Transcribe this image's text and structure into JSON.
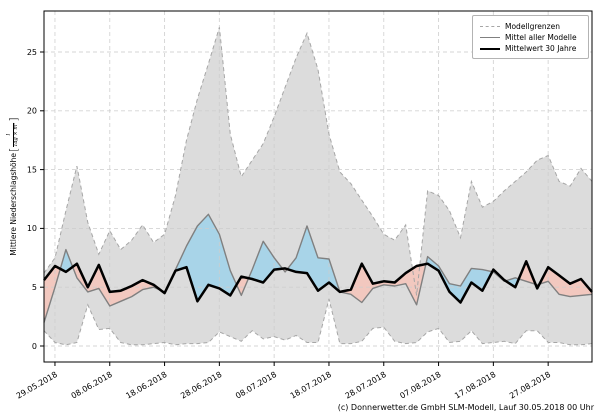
{
  "chart_data": {
    "type": "line",
    "title": "",
    "ylabel": {
      "text": "Mittlere Niederschlagshöhe",
      "open": "[",
      "num": "l",
      "den": "Tag × m²",
      "close": "]"
    },
    "ytick_values": [
      0,
      5,
      10,
      15,
      20,
      25
    ],
    "ytick_labels": [
      "0",
      "5",
      "10",
      "15",
      "20",
      "25"
    ],
    "ylim": [
      -1.4,
      28.5
    ],
    "x_tick_labels": [
      "29.05.2018",
      "08.06.2018",
      "18.06.2018",
      "28.06.2018",
      "08.07.2018",
      "18.07.2018",
      "28.07.2018",
      "07.08.2018",
      "17.08.2018",
      "27.08.2018"
    ],
    "x_tick_days": [
      2,
      12,
      22,
      32,
      42,
      52,
      62,
      72,
      82,
      92
    ],
    "xlim_days": [
      0,
      100
    ],
    "x_days": [
      0,
      2,
      4,
      6,
      8,
      10,
      12,
      14,
      16,
      18,
      20,
      22,
      24,
      26,
      28,
      30,
      32,
      34,
      36,
      38,
      40,
      42,
      44,
      46,
      48,
      50,
      52,
      54,
      56,
      58,
      60,
      62,
      64,
      66,
      68,
      70,
      72,
      74,
      76,
      78,
      80,
      82,
      84,
      86,
      88,
      90,
      92,
      94,
      96,
      98,
      100
    ],
    "grid": true,
    "legend": {
      "position": "upper right",
      "items": [
        {
          "label": "Modellgrenzen",
          "style": "dashed",
          "color": "#a6a6a6"
        },
        {
          "label": "Mittel aller Modelle",
          "style": "solid",
          "color": "#808080"
        },
        {
          "label": "Mittelwert 30 Jahre",
          "style": "thick",
          "color": "#000000"
        }
      ]
    },
    "series": [
      {
        "name": "Modellgrenzen (obere Grenze)",
        "role": "upper",
        "values": [
          6.2,
          7.5,
          11.5,
          15.3,
          10.5,
          7.8,
          9.8,
          8.2,
          9.0,
          10.3,
          8.8,
          9.5,
          12.8,
          17.5,
          21.0,
          24.0,
          27.1,
          18.0,
          14.4,
          15.8,
          17.2,
          19.5,
          22.0,
          24.5,
          26.6,
          23.5,
          18.0,
          14.8,
          13.8,
          12.4,
          11.0,
          9.5,
          9.0,
          10.3,
          4.3,
          13.2,
          12.8,
          11.5,
          9.2,
          14.0,
          11.8,
          12.3,
          13.2,
          14.0,
          14.8,
          15.8,
          16.2,
          14.0,
          13.6,
          15.1,
          14.0
        ]
      },
      {
        "name": "Modellgrenzen (untere Grenze)",
        "role": "lower",
        "values": [
          1.3,
          0.3,
          0.1,
          0.3,
          3.5,
          1.4,
          1.5,
          0.3,
          0.1,
          0.1,
          0.2,
          0.3,
          0.1,
          0.2,
          0.2,
          0.3,
          1.2,
          0.8,
          0.4,
          1.3,
          0.6,
          0.8,
          0.5,
          0.9,
          0.3,
          0.3,
          4.0,
          0.2,
          0.2,
          0.4,
          1.5,
          1.6,
          0.4,
          0.2,
          0.3,
          1.2,
          1.5,
          0.3,
          0.4,
          1.3,
          0.2,
          0.3,
          0.4,
          0.2,
          1.3,
          1.3,
          0.3,
          0.3,
          0.1,
          0.1,
          0.2
        ]
      },
      {
        "name": "Mittel aller Modelle",
        "role": "mean",
        "values": [
          2.0,
          5.0,
          8.2,
          5.8,
          4.6,
          4.9,
          3.4,
          3.8,
          4.2,
          4.8,
          5.0,
          4.6,
          6.5,
          8.5,
          10.2,
          11.2,
          9.5,
          6.4,
          4.3,
          6.5,
          8.9,
          7.5,
          6.3,
          7.5,
          10.2,
          7.5,
          7.4,
          4.6,
          4.4,
          3.7,
          4.9,
          5.2,
          5.1,
          5.3,
          3.5,
          7.6,
          6.8,
          5.3,
          5.1,
          6.6,
          6.5,
          6.3,
          5.5,
          5.8,
          5.5,
          5.2,
          5.5,
          4.4,
          4.2,
          4.3,
          4.4
        ]
      },
      {
        "name": "Mittelwert 30 Jahre",
        "role": "mean30",
        "values": [
          5.6,
          6.8,
          6.3,
          7.0,
          5.0,
          6.9,
          4.6,
          4.7,
          5.1,
          5.6,
          5.2,
          4.5,
          6.4,
          6.7,
          3.8,
          5.2,
          4.9,
          4.3,
          5.9,
          5.7,
          5.4,
          6.5,
          6.6,
          6.3,
          6.2,
          4.7,
          5.4,
          4.6,
          4.8,
          7.0,
          5.3,
          5.5,
          5.4,
          6.2,
          6.8,
          7.0,
          6.4,
          4.6,
          3.7,
          5.4,
          4.7,
          6.5,
          5.6,
          5.0,
          7.2,
          4.9,
          6.7,
          6.0,
          5.3,
          5.7,
          4.6
        ]
      }
    ],
    "colors": {
      "band": "#dcdcdc",
      "bound_line": "#a6a6a6",
      "mean_line": "#808080",
      "mean30_line": "#000000",
      "fill_above": "#a8d4e8",
      "fill_below": "#f2c8bf",
      "grid": "#cdcdcd",
      "spine": "#000000"
    },
    "footer": "(c) Donnerwetter.de GmbH SLM-Modell, Lauf 30.05.2018 00 Uhr"
  }
}
